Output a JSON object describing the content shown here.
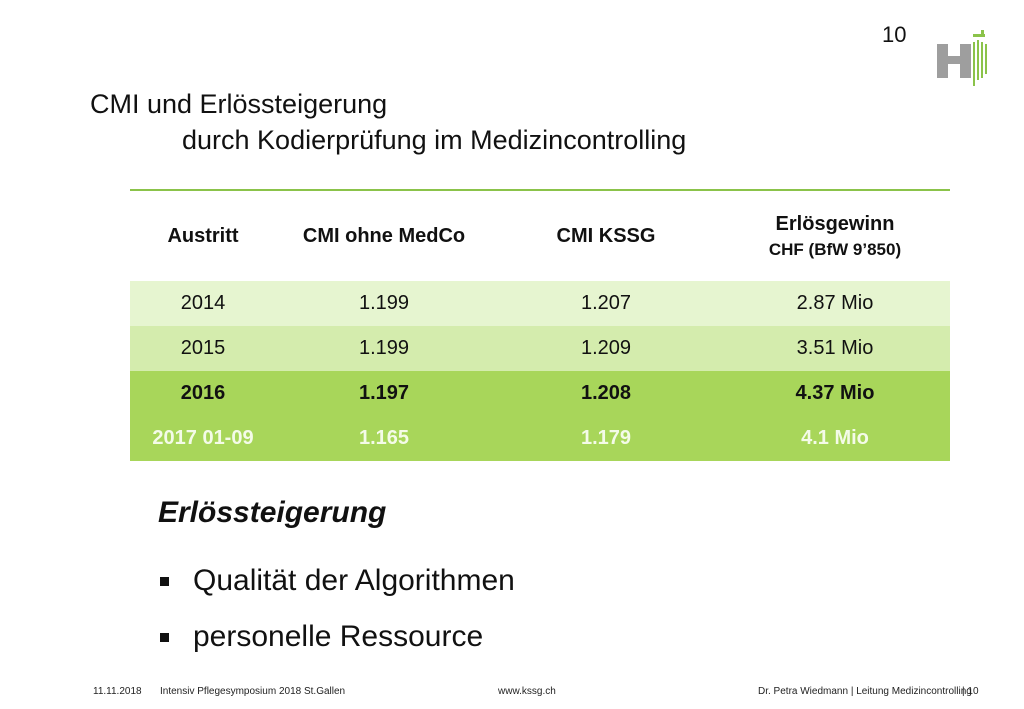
{
  "slide_number": "10",
  "logo": {
    "letter": "H"
  },
  "title": {
    "line1": "CMI und Erlössteigerung",
    "line2": "durch Kodierprüfung im Medizincontrolling"
  },
  "table": {
    "headers": [
      "Austritt",
      "CMI ohne MedCo",
      "CMI KSSG",
      "Erlösgewinn"
    ],
    "header_sub": "CHF (BfW 9’850)",
    "rows": [
      [
        "2014",
        "1.199",
        "1.207",
        "2.87 Mio"
      ],
      [
        "2015",
        "1.199",
        "1.209",
        "3.51 Mio"
      ],
      [
        "2016",
        "1.197",
        "1.208",
        "4.37 Mio"
      ],
      [
        "2017 01-09",
        "1.165",
        "1.179",
        "4.1 Mio"
      ]
    ]
  },
  "section": {
    "heading": "Erlössteigerung",
    "bullets": [
      "Qualität der Algorithmen",
      "personelle Ressource"
    ]
  },
  "footer": {
    "date": "11.11.2018",
    "event": "Intensiv Pflegesymposium 2018 St.Gallen",
    "url": "www.kssg.ch",
    "author": "Dr. Petra Wiedmann | Leitung Medizincontrolling",
    "page": "| 10"
  },
  "colors": {
    "accent_line": "#8bc34a",
    "row_light": "#e6f5d0",
    "row_mid": "#d4ecad",
    "row_strong": "#a8d65a"
  }
}
